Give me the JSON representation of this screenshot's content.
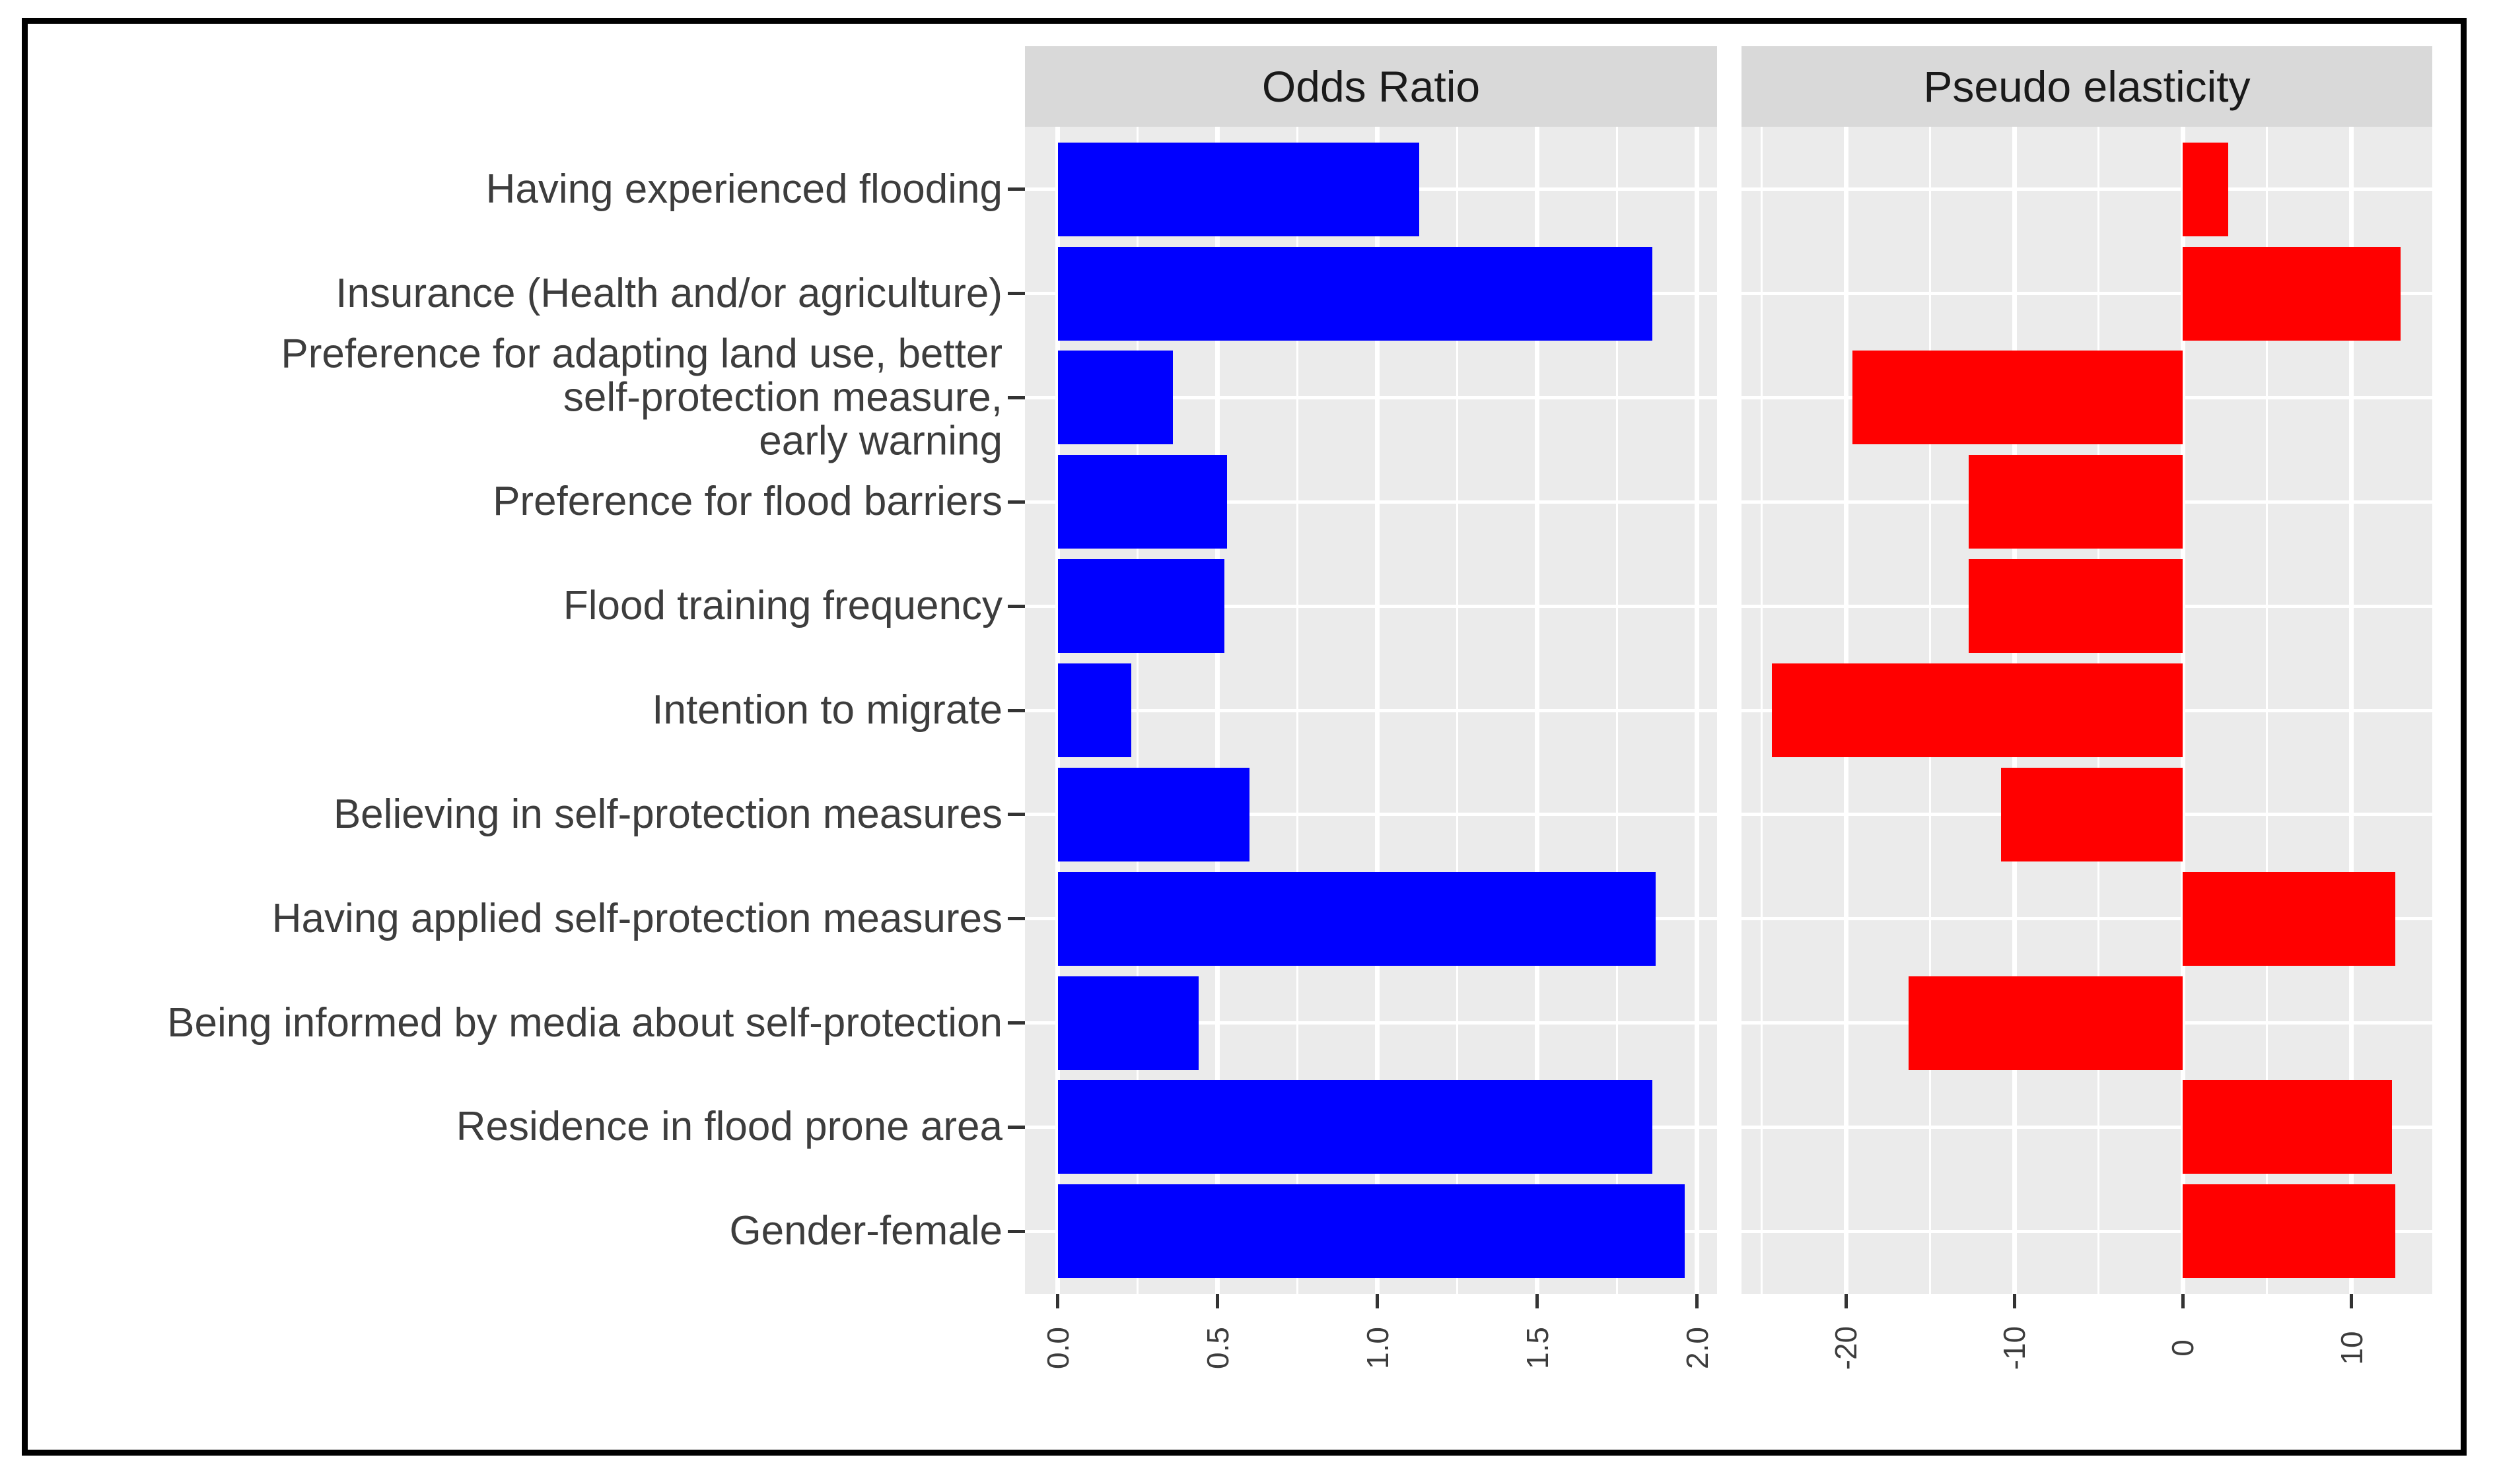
{
  "chart_data": {
    "type": "bar",
    "orientation": "horizontal",
    "title": "",
    "xlabel": "",
    "ylabel": "",
    "grid": true,
    "legend_position": "none",
    "facets": [
      "Odds Ratio",
      "Pseudo elasticity"
    ],
    "categories": [
      "Having experienced flooding",
      "Insurance (Health and/or agriculture)",
      "Preference for adapting land use, better\nself-protection measure,\nearly warning",
      "Preference for flood barriers",
      "Flood training frequency",
      "Intention to migrate",
      "Believing in self-protection measures",
      "Having applied self-protection measures",
      "Being informed by media about self-protection",
      "Residence in flood prone area",
      "Gender-female"
    ],
    "series": [
      {
        "name": "Odds Ratio",
        "color": "#0000ff",
        "values": [
          1.13,
          1.86,
          0.36,
          0.53,
          0.52,
          0.23,
          0.6,
          1.87,
          0.44,
          1.86,
          1.96
        ],
        "xlim": [
          -0.103,
          2.062
        ],
        "x_ticks": [
          0.0,
          0.5,
          1.0,
          1.5,
          2.0
        ],
        "x_tick_labels": [
          "0.0",
          "0.5",
          "1.0",
          "1.5",
          "2.0"
        ],
        "x_minor_ticks": [
          0.25,
          0.75,
          1.25,
          1.75
        ]
      },
      {
        "name": "Pseudo elasticity",
        "color": "#ff0000",
        "values": [
          2.7,
          12.9,
          -19.6,
          -12.7,
          -12.7,
          -24.4,
          -10.8,
          12.6,
          -16.3,
          12.4,
          12.6
        ],
        "xlim": [
          -26.2,
          14.8
        ],
        "x_ticks": [
          -20,
          -10,
          0,
          10
        ],
        "x_tick_labels": [
          "-20",
          "-10",
          "0",
          "10"
        ],
        "x_minor_ticks": [
          -25,
          -15,
          -5,
          5
        ]
      }
    ],
    "style": {
      "panel_background": "#ebebeb",
      "strip_background": "#d9d9d9",
      "gridline_color": "#ffffff",
      "text_color": "#3d3d3d",
      "outer_border_color": "#000000",
      "bar_colors": [
        "#0000ff",
        "#ff0000"
      ]
    }
  }
}
